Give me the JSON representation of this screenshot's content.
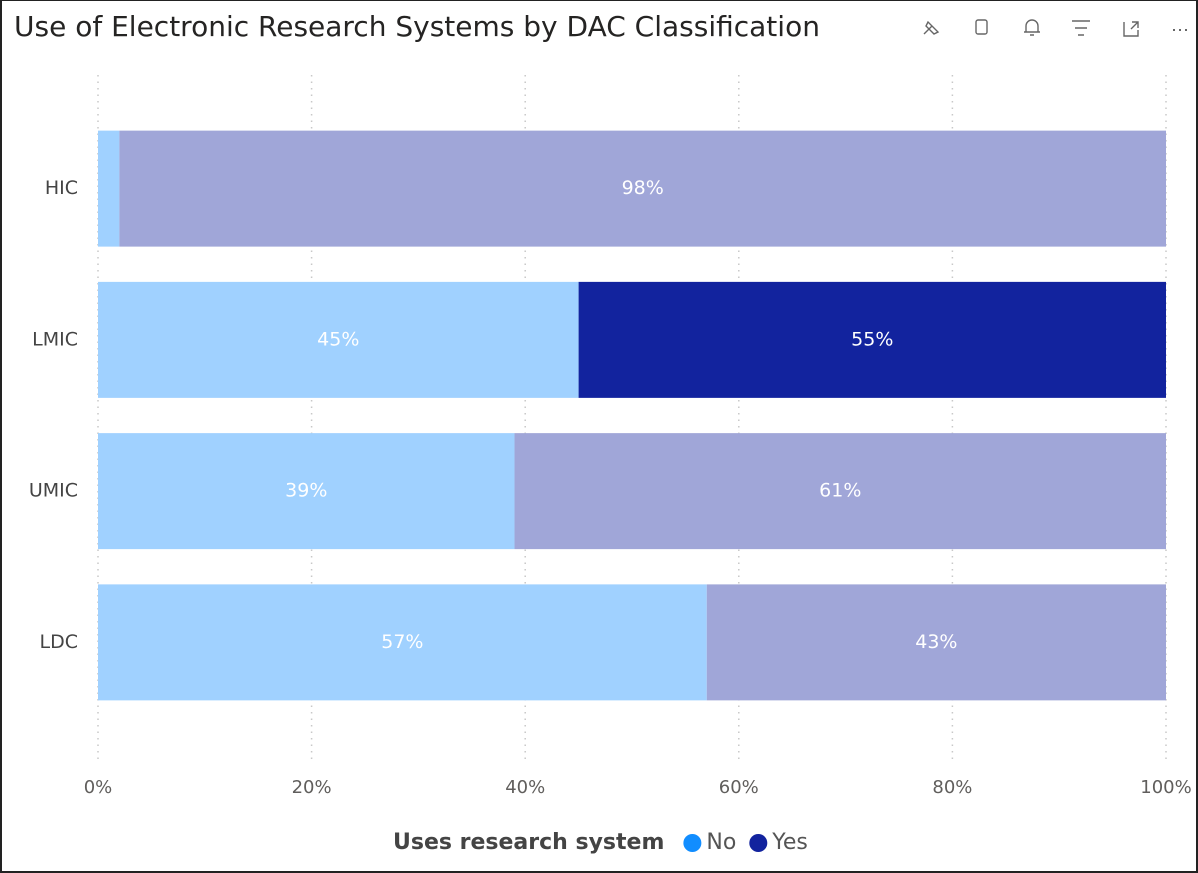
{
  "chart_data": {
    "type": "stacked-bar-horizontal",
    "title": "Use of Electronic Research Systems by DAC Classification",
    "categories": [
      "HIC",
      "LMIC",
      "UMIC",
      "LDC"
    ],
    "series": [
      {
        "name": "No",
        "color": "#118dff",
        "colors": [
          "#a0d1ff",
          "#a0d1ff",
          "#a0d1ff",
          "#a0d1ff"
        ],
        "values": [
          2,
          45,
          39,
          57
        ],
        "value_labels": [
          null,
          "45%",
          "39%",
          "57%"
        ]
      },
      {
        "name": "Yes",
        "color": "#12239e",
        "colors": [
          "#a0a6d8",
          "#12239e",
          "#a0a6d8",
          "#a0a6d8"
        ],
        "values": [
          98,
          55,
          61,
          43
        ],
        "value_labels": [
          "98%",
          "55%",
          "61%",
          "43%"
        ]
      }
    ],
    "legend_title": "Uses research system",
    "legend": "bottom",
    "xlim": [
      0,
      100
    ],
    "xticks": [
      {
        "value": 0,
        "label": "0%"
      },
      {
        "value": 20,
        "label": "20%"
      },
      {
        "value": 40,
        "label": "40%"
      },
      {
        "value": 60,
        "label": "60%"
      },
      {
        "value": 80,
        "label": "80%"
      },
      {
        "value": 100,
        "label": "100%"
      }
    ],
    "grid": true
  }
}
